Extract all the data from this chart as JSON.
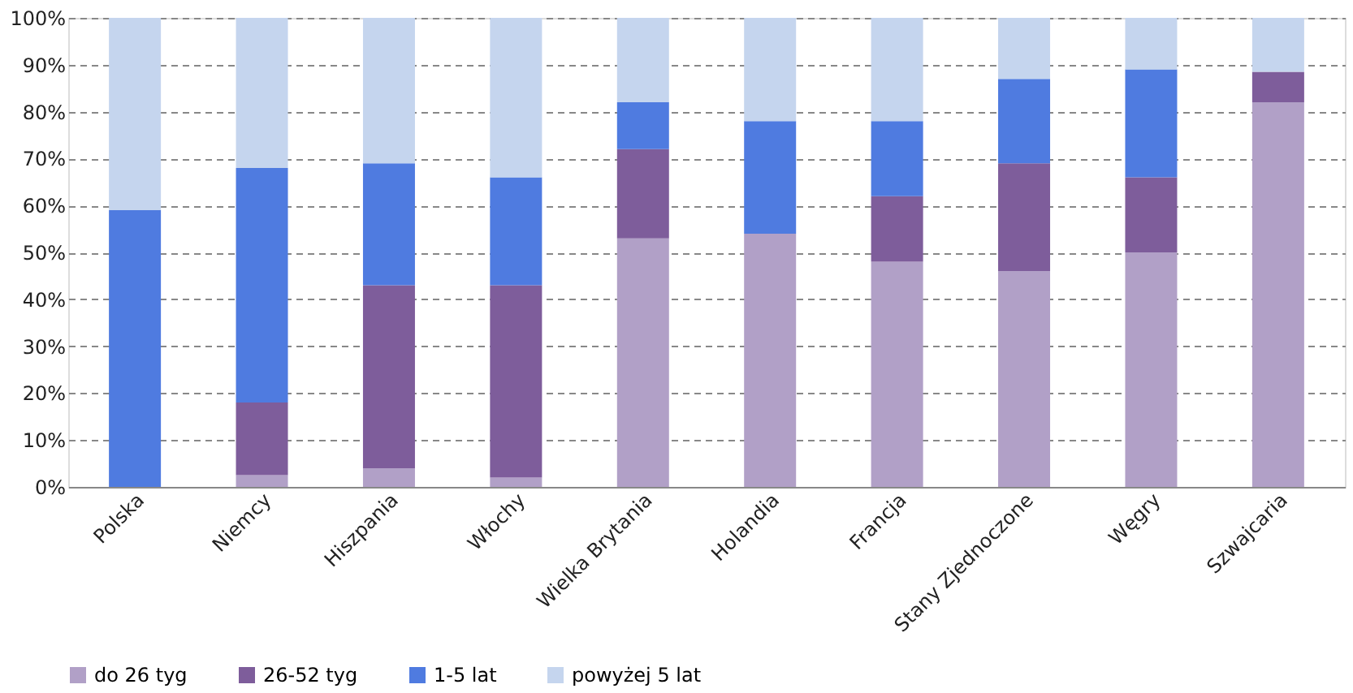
{
  "chart_data": {
    "type": "bar",
    "stacked": true,
    "categories": [
      "Polska",
      "Niemcy",
      "Hiszpania",
      "Włochy",
      "Wielka Brytania",
      "Holandia",
      "Francja",
      "Stany Zjednoczone",
      "Węgry",
      "Szwajcaria"
    ],
    "series": [
      {
        "name": "do 26 tyg",
        "color": "#b1a0c7",
        "values": [
          0,
          2.5,
          4,
          2,
          53,
          54,
          48,
          46,
          50,
          82
        ]
      },
      {
        "name": "26-52 tyg",
        "color": "#7e5d9b",
        "values": [
          0,
          15.5,
          39,
          41,
          19,
          0,
          14,
          23,
          16,
          6.5
        ]
      },
      {
        "name": "1-5 lat",
        "color": "#4f7be0",
        "values": [
          59,
          50,
          26,
          23,
          10,
          24,
          16,
          18,
          23,
          0
        ]
      },
      {
        "name": "powyżej 5 lat",
        "color": "#c5d5ee",
        "values": [
          41,
          32,
          31,
          34,
          18,
          22,
          22,
          13,
          11,
          11.5
        ]
      }
    ],
    "ylim": [
      0,
      100
    ],
    "yticks": [
      {
        "value": 0,
        "label": "0%"
      },
      {
        "value": 10,
        "label": "10%"
      },
      {
        "value": 20,
        "label": "20%"
      },
      {
        "value": 30,
        "label": "30%"
      },
      {
        "value": 40,
        "label": "40%"
      },
      {
        "value": 50,
        "label": "50%"
      },
      {
        "value": 60,
        "label": "60%"
      },
      {
        "value": 70,
        "label": "70%"
      },
      {
        "value": 80,
        "label": "80%"
      },
      {
        "value": 90,
        "label": "90%"
      },
      {
        "value": 100,
        "label": "100%"
      }
    ],
    "grid": "y",
    "legend": "bottom"
  }
}
